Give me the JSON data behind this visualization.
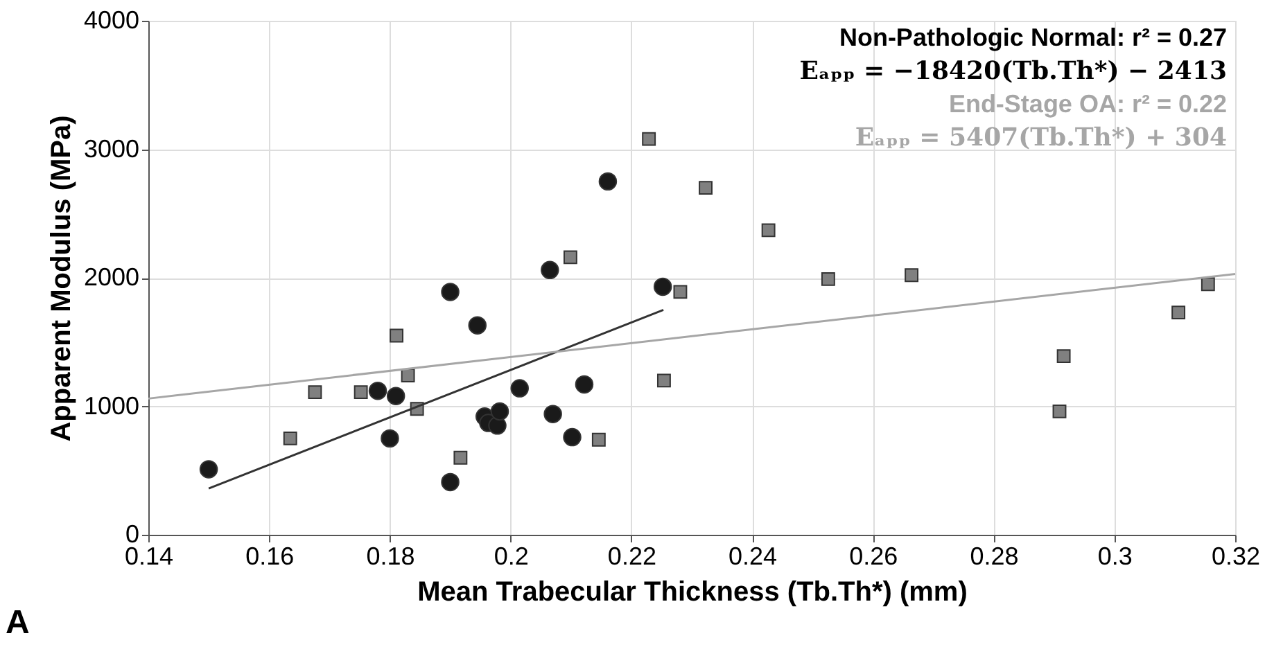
{
  "chart_data": {
    "type": "scatter",
    "title": "A",
    "xlabel": "Mean Trabecular Thickness (Tb.Th*) (mm)",
    "ylabel": "Apparent Modulus (MPa)",
    "xlim": [
      0.14,
      0.32
    ],
    "xticks": [
      0.14,
      0.16,
      0.18,
      0.2,
      0.22,
      0.24,
      0.26,
      0.28,
      0.3,
      0.32
    ],
    "ylim": [
      0,
      4000
    ],
    "yticks": [
      0,
      1000,
      2000,
      3000,
      4000
    ],
    "grid": true,
    "annotations": [
      "Non-Pathologic Normal: r² = 0.27",
      "Eₐₚₚ = −18420(Tb.Th*) − 2413",
      "End-Stage OA: r² = 0.22",
      "Eₐₚₚ =  5407(Tb.Th*) + 304"
    ],
    "series": [
      {
        "marker": "circle",
        "color": "#1a1a1a",
        "x": [
          0.15,
          0.178,
          0.18,
          0.181,
          0.19,
          0.19,
          0.1945,
          0.1957,
          0.1963,
          0.1978,
          0.1982,
          0.2015,
          0.2065,
          0.207,
          0.2102,
          0.2122,
          0.2161,
          0.2252
        ],
        "values": [
          510,
          1120,
          750,
          1080,
          1890,
          410,
          1630,
          920,
          870,
          850,
          960,
          1140,
          2060,
          940,
          760,
          1170,
          2750,
          1930
        ]
      },
      {
        "marker": "square",
        "color": "#808080",
        "x": [
          0.1635,
          0.1676,
          0.1752,
          0.1811,
          0.183,
          0.1845,
          0.1917,
          0.2099,
          0.2146,
          0.2229,
          0.2254,
          0.2281,
          0.2323,
          0.2427,
          0.2526,
          0.2664,
          0.2909,
          0.2916,
          0.3106,
          0.3155
        ],
        "values": [
          750,
          1110,
          1110,
          1550,
          1240,
          980,
          600,
          2160,
          740,
          3080,
          1200,
          1890,
          2700,
          2370,
          1990,
          2020,
          960,
          1390,
          1730,
          1950
        ]
      },
      {
        "type": "line",
        "color": "#333333",
        "x": [
          0.15,
          0.2253
        ],
        "values": [
          360,
          1750
        ]
      },
      {
        "type": "line",
        "color": "#a6a6a6",
        "x": [
          0.14,
          0.32
        ],
        "values": [
          1060,
          2030
        ]
      }
    ]
  }
}
